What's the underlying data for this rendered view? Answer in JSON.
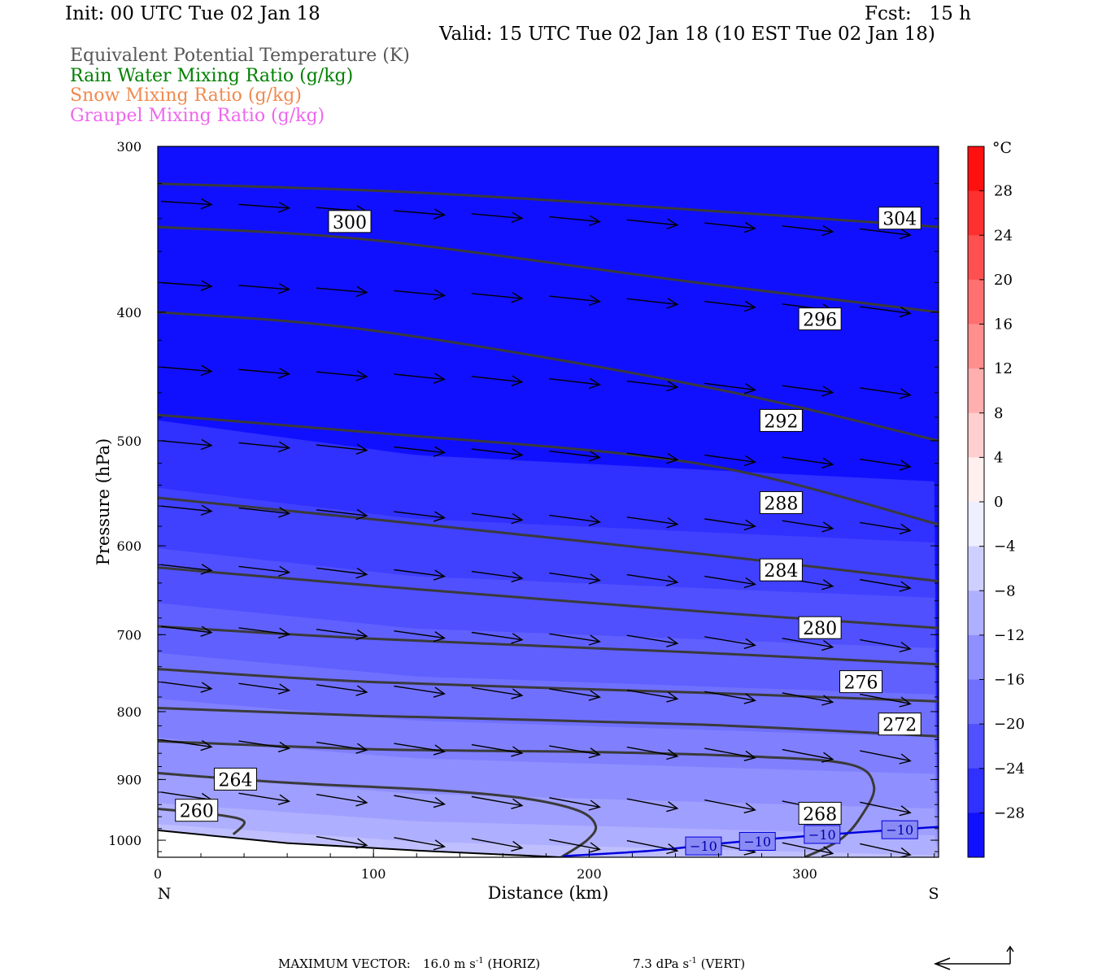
{
  "header": {
    "init": "Init: 00 UTC Tue 02 Jan 18",
    "fcst": "Fcst:   15 h",
    "valid": "Valid: 15 UTC Tue 02 Jan 18 (10 EST Tue 02 Jan 18)"
  },
  "legend": [
    {
      "label": "Equivalent Potential Temperature (K)",
      "color": "#555555"
    },
    {
      "label": "Rain Water Mixing Ratio (g/kg)",
      "color": "#008000"
    },
    {
      "label": "Snow Mixing Ratio (g/kg)",
      "color": "#f08a50"
    },
    {
      "label": "Graupel Mixing Ratio (g/kg)",
      "color": "#ee66ee"
    }
  ],
  "footer": {
    "max_vector_label": "MAXIMUM VECTOR:",
    "horiz_value": "16.0 m s",
    "horiz_unit": "(HORIZ)",
    "vert_value": "7.3 dPa s",
    "vert_unit": "(VERT)",
    "exponent": "-1"
  },
  "chart_data": {
    "type": "heatmap",
    "title": "",
    "xlabel": "Distance (km)",
    "ylabel": "Pressure (hPa)",
    "xlim": [
      0,
      362
    ],
    "ylim": [
      300,
      1030
    ],
    "y_scale": "log",
    "x_ticks": [
      0,
      100,
      200,
      300
    ],
    "y_ticks": [
      300,
      400,
      500,
      600,
      700,
      800,
      900,
      1000
    ],
    "x_end_labels": {
      "left": "N",
      "right": "S"
    },
    "colorbar": {
      "unit": "°C",
      "ticks": [
        28,
        24,
        20,
        16,
        12,
        8,
        4,
        0,
        -4,
        -8,
        -12,
        -16,
        -20,
        -24,
        -28
      ],
      "tick_labels": [
        "28",
        "24",
        "20",
        "16",
        "12",
        "8",
        "4",
        "0",
        "−4",
        "−8",
        "−12",
        "−16",
        "−20",
        "−24",
        "−28"
      ],
      "range": [
        -32,
        32
      ],
      "cold_color": "#0000ff",
      "mid_color": "#ffffff",
      "warm_color": "#ff0000"
    },
    "theta_e_contours": [
      {
        "value": 260,
        "points": [
          [
            0,
            947
          ],
          [
            28,
            957
          ],
          [
            40,
            968
          ],
          [
            35,
            990
          ]
        ],
        "label_at": [
          18,
          950
        ]
      },
      {
        "value": 264,
        "points": [
          [
            0,
            890
          ],
          [
            60,
            905
          ],
          [
            130,
            917
          ],
          [
            170,
            930
          ],
          [
            195,
            950
          ],
          [
            203,
            975
          ],
          [
            199,
            1000
          ],
          [
            187,
            1030
          ]
        ],
        "label_at": [
          36,
          900
        ]
      },
      {
        "value": 268,
        "points": [
          [
            0,
            842
          ],
          [
            100,
            854
          ],
          [
            200,
            858
          ],
          [
            270,
            864
          ],
          [
            320,
            876
          ],
          [
            332,
            910
          ],
          [
            326,
            960
          ],
          [
            316,
            1000
          ],
          [
            300,
            1030
          ]
        ],
        "label_at": [
          307,
          955
        ]
      },
      {
        "value": 272,
        "points": [
          [
            0,
            795
          ],
          [
            100,
            806
          ],
          [
            250,
            818
          ],
          [
            362,
            835
          ]
        ],
        "label_at": [
          344,
          818
        ]
      },
      {
        "value": 276,
        "points": [
          [
            0,
            743
          ],
          [
            100,
            760
          ],
          [
            250,
            774
          ],
          [
            362,
            786
          ]
        ],
        "label_at": [
          326,
          760
        ]
      },
      {
        "value": 280,
        "points": [
          [
            0,
            690
          ],
          [
            100,
            705
          ],
          [
            250,
            722
          ],
          [
            362,
            737
          ]
        ],
        "label_at": [
          307,
          692
        ]
      },
      {
        "value": 284,
        "points": [
          [
            0,
            623
          ],
          [
            100,
            643
          ],
          [
            250,
            672
          ],
          [
            362,
            692
          ]
        ],
        "label_at": [
          289,
          626
        ]
      },
      {
        "value": 288,
        "points": [
          [
            0,
            552
          ],
          [
            100,
            573
          ],
          [
            250,
            608
          ],
          [
            362,
            638
          ]
        ],
        "label_at": [
          289,
          557
        ]
      },
      {
        "value": 292,
        "points": [
          [
            0,
            478
          ],
          [
            100,
            493
          ],
          [
            250,
            520
          ],
          [
            362,
            578
          ]
        ],
        "label_at": [
          289,
          483
        ]
      },
      {
        "value": 296,
        "points": [
          [
            0,
            400
          ],
          [
            100,
            413
          ],
          [
            250,
            454
          ],
          [
            362,
            500
          ]
        ],
        "label_at": [
          307,
          405
        ]
      },
      {
        "value": 300,
        "points": [
          [
            0,
            345
          ],
          [
            100,
            353
          ],
          [
            250,
            380
          ],
          [
            362,
            400
          ]
        ],
        "label_at": [
          89,
          342
        ]
      },
      {
        "value": 304,
        "points": [
          [
            0,
            320
          ],
          [
            120,
            325
          ],
          [
            250,
            335
          ],
          [
            362,
            345
          ]
        ],
        "label_at": [
          344,
          340
        ]
      }
    ],
    "isotherm_minus10": {
      "value": -10,
      "color": "#0000dd",
      "points": [
        [
          188,
          1028
        ],
        [
          230,
          1018
        ],
        [
          260,
          1006
        ],
        [
          300,
          993
        ],
        [
          362,
          977
        ]
      ],
      "labels_at": [
        [
          253,
          1010
        ],
        [
          278,
          1002
        ],
        [
          308,
          990
        ],
        [
          344,
          982
        ]
      ]
    },
    "terrain_pressure": [
      [
        0,
        983
      ],
      [
        60,
        1005
      ],
      [
        120,
        1018
      ],
      [
        187,
        1030
      ]
    ]
  }
}
